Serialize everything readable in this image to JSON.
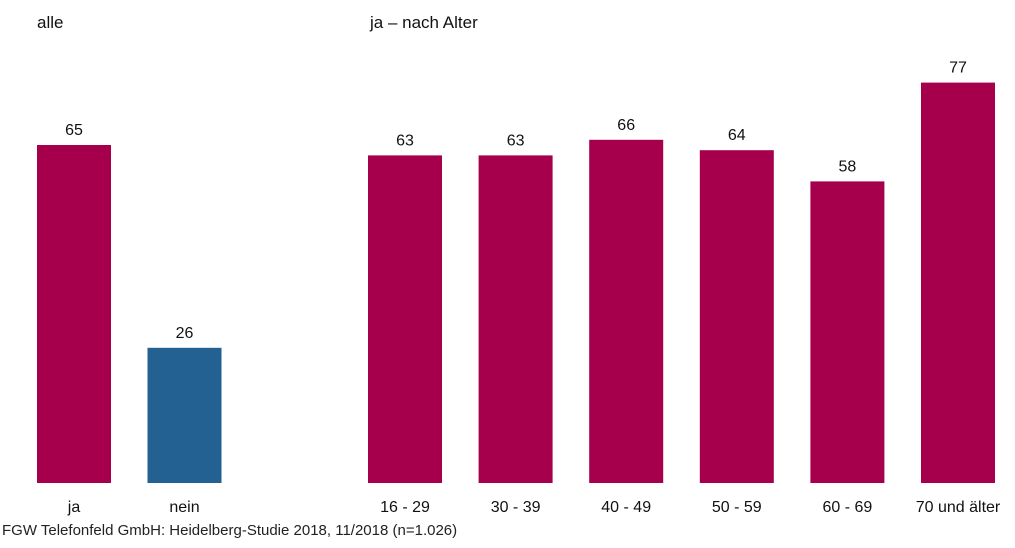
{
  "source": "FGW Telefonfeld GmbH: Heidelberg-Studie 2018, 11/2018 (n=1.026)",
  "colors": {
    "primary": "#A6004D",
    "secondary": "#236192",
    "text": "#111111"
  },
  "chart_data": [
    {
      "type": "bar",
      "title": "alle",
      "categories": [
        "ja",
        "nein"
      ],
      "values": [
        65,
        26
      ],
      "bar_colors": [
        "#A6004D",
        "#236192"
      ],
      "ylim": [
        0,
        80
      ],
      "grid": false,
      "legend": "none"
    },
    {
      "type": "bar",
      "title": "ja – nach Alter",
      "categories": [
        "16 - 29",
        "30 - 39",
        "40 - 49",
        "50 - 59",
        "60 - 69",
        "70 und älter"
      ],
      "values": [
        63,
        63,
        66,
        64,
        58,
        77
      ],
      "bar_colors": [
        "#A6004D",
        "#A6004D",
        "#A6004D",
        "#A6004D",
        "#A6004D",
        "#A6004D"
      ],
      "ylim": [
        0,
        80
      ],
      "grid": false,
      "legend": "none"
    }
  ]
}
